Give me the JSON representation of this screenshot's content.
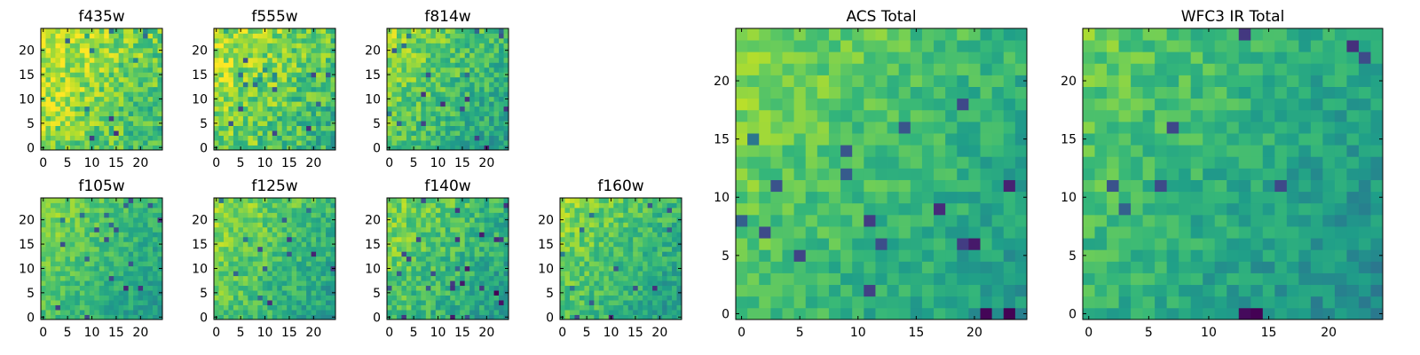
{
  "figure": {
    "colormap": "viridis",
    "colormap_stops": [
      "#440154",
      "#482878",
      "#3e4989",
      "#31688e",
      "#26828e",
      "#1f9e89",
      "#35b779",
      "#6ece58",
      "#b5de2b",
      "#fde725"
    ],
    "background": "#ffffff"
  },
  "chart_data": [
    {
      "type": "heatmap",
      "title": "f435w",
      "grid": [
        25,
        25
      ],
      "xlim": [
        0,
        24
      ],
      "ylim": [
        0,
        24
      ],
      "xticks": [
        0,
        5,
        10,
        15,
        20
      ],
      "yticks": [
        0,
        5,
        10,
        15,
        20
      ],
      "value_range": [
        0,
        1
      ],
      "description_values": {
        "mean": 0.78,
        "spread": 0.16,
        "seed": 11
      }
    },
    {
      "type": "heatmap",
      "title": "f555w",
      "grid": [
        25,
        25
      ],
      "xlim": [
        0,
        24
      ],
      "ylim": [
        0,
        24
      ],
      "xticks": [
        0,
        5,
        10,
        15,
        20
      ],
      "yticks": [
        0,
        5,
        10,
        15,
        20
      ],
      "value_range": [
        0,
        1
      ],
      "description_values": {
        "mean": 0.75,
        "spread": 0.17,
        "seed": 23
      }
    },
    {
      "type": "heatmap",
      "title": "f814w",
      "grid": [
        25,
        25
      ],
      "xlim": [
        0,
        24
      ],
      "ylim": [
        0,
        24
      ],
      "xticks": [
        0,
        5,
        10,
        15,
        20
      ],
      "yticks": [
        0,
        5,
        10,
        15,
        20
      ],
      "value_range": [
        0,
        1
      ],
      "description_values": {
        "mean": 0.68,
        "spread": 0.14,
        "seed": 37
      }
    },
    {
      "type": "heatmap",
      "title": "f105w",
      "grid": [
        25,
        25
      ],
      "xlim": [
        0,
        24
      ],
      "ylim": [
        0,
        24
      ],
      "xticks": [
        0,
        5,
        10,
        15,
        20
      ],
      "yticks": [
        0,
        5,
        10,
        15,
        20
      ],
      "value_range": [
        0,
        1
      ],
      "description_values": {
        "mean": 0.66,
        "spread": 0.1,
        "seed": 41
      }
    },
    {
      "type": "heatmap",
      "title": "f125w",
      "grid": [
        25,
        25
      ],
      "xlim": [
        0,
        24
      ],
      "ylim": [
        0,
        24
      ],
      "xticks": [
        0,
        5,
        10,
        15,
        20
      ],
      "yticks": [
        0,
        5,
        10,
        15,
        20
      ],
      "value_range": [
        0,
        1
      ],
      "description_values": {
        "mean": 0.68,
        "spread": 0.12,
        "seed": 53
      }
    },
    {
      "type": "heatmap",
      "title": "f140w",
      "grid": [
        25,
        25
      ],
      "xlim": [
        0,
        24
      ],
      "ylim": [
        0,
        24
      ],
      "xticks": [
        0,
        5,
        10,
        15,
        20
      ],
      "yticks": [
        0,
        5,
        10,
        15,
        20
      ],
      "value_range": [
        0,
        1
      ],
      "description_values": {
        "mean": 0.66,
        "spread": 0.13,
        "seed": 67
      }
    },
    {
      "type": "heatmap",
      "title": "f160w",
      "grid": [
        25,
        25
      ],
      "xlim": [
        0,
        24
      ],
      "ylim": [
        0,
        24
      ],
      "xticks": [
        0,
        5,
        10,
        15,
        20
      ],
      "yticks": [
        0,
        5,
        10,
        15,
        20
      ],
      "value_range": [
        0,
        1
      ],
      "description_values": {
        "mean": 0.67,
        "spread": 0.12,
        "seed": 79
      }
    },
    {
      "type": "heatmap",
      "title": "ACS Total",
      "grid": [
        25,
        25
      ],
      "xlim": [
        0,
        24
      ],
      "ylim": [
        0,
        24
      ],
      "xticks": [
        0,
        5,
        10,
        15,
        20
      ],
      "yticks": [
        0,
        5,
        10,
        15,
        20
      ],
      "value_range": [
        0,
        1
      ],
      "description_values": {
        "mean": 0.66,
        "spread": 0.1,
        "seed": 83
      }
    },
    {
      "type": "heatmap",
      "title": "WFC3 IR Total",
      "grid": [
        25,
        25
      ],
      "xlim": [
        0,
        24
      ],
      "ylim": [
        0,
        24
      ],
      "xticks": [
        0,
        5,
        10,
        15,
        20
      ],
      "yticks": [
        0,
        5,
        10,
        15,
        20
      ],
      "value_range": [
        0,
        1
      ],
      "description_values": {
        "mean": 0.6,
        "spread": 0.1,
        "seed": 97
      }
    }
  ]
}
